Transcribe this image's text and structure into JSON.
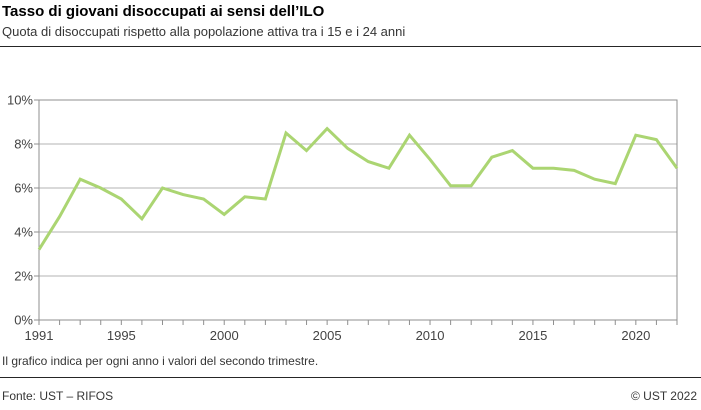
{
  "header": {
    "title": "Tasso di giovani disoccupati ai sensi dell’ILO",
    "subtitle": "Quota di disoccupati rispetto alla popolazione attiva tra i 15 e i 24 anni"
  },
  "note": "Il grafico indica per ogni anno i valori del secondo trimestre.",
  "footer": {
    "source": "Fonte: UST – RIFOS",
    "copyright": "© UST 2022"
  },
  "colors": {
    "line": "#abd572",
    "grid": "#b3b3b3",
    "border": "#8f8f8f",
    "tick": "#8f8f8f",
    "axis_text": "#434343"
  },
  "chart_data": {
    "type": "line",
    "title": "Tasso di giovani disoccupati ai sensi dell’ILO",
    "subtitle": "Quota di disoccupati rispetto alla popolazione attiva tra i 15 e i 24 anni",
    "xlabel": "",
    "ylabel": "",
    "x": [
      1991,
      1992,
      1993,
      1994,
      1995,
      1996,
      1997,
      1998,
      1999,
      2000,
      2001,
      2002,
      2003,
      2004,
      2005,
      2006,
      2007,
      2008,
      2009,
      2010,
      2011,
      2012,
      2013,
      2014,
      2015,
      2016,
      2017,
      2018,
      2019,
      2020,
      2021,
      2022
    ],
    "values": [
      3.2,
      4.7,
      6.4,
      6.0,
      5.5,
      4.6,
      6.0,
      5.7,
      5.5,
      4.8,
      5.6,
      5.5,
      8.5,
      7.7,
      8.7,
      7.8,
      7.2,
      6.9,
      8.4,
      7.3,
      6.1,
      6.1,
      7.4,
      7.7,
      6.9,
      6.9,
      6.8,
      6.4,
      6.2,
      8.4,
      8.2,
      6.9
    ],
    "ylim": [
      0,
      10
    ],
    "yticks": [
      0,
      2,
      4,
      6,
      8,
      10
    ],
    "ytick_suffix": "%",
    "xtick_labels": [
      1991,
      1995,
      2000,
      2005,
      2010,
      2015,
      2020
    ],
    "xtick_minor_every_year": true,
    "grid": true,
    "legend": "none"
  }
}
